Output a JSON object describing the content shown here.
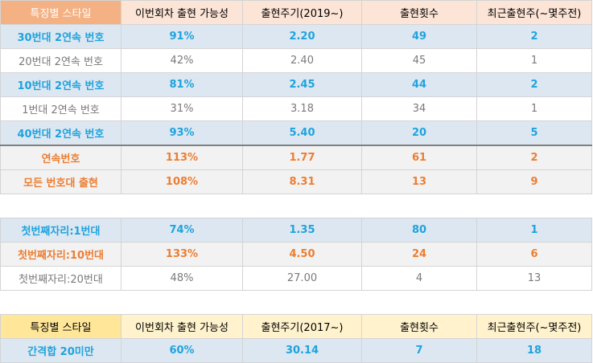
{
  "header": {
    "style": "특징별 스타일",
    "possibility": "이번회차 출현 가능성",
    "cycle": "출현주기(2019~)",
    "count": "출현횟수",
    "recent": "최근출현주(~몇주전)"
  },
  "rows": [
    {
      "style": "30번대 2연속 번호",
      "possibility": "91%",
      "cycle": "2.20",
      "count": "49",
      "recent": "2"
    },
    {
      "style": "20번대 2연속 번호",
      "possibility": "42%",
      "cycle": "2.40",
      "count": "45",
      "recent": "1"
    },
    {
      "style": "10번대 2연속 번호",
      "possibility": "81%",
      "cycle": "2.45",
      "count": "44",
      "recent": "2"
    },
    {
      "style": "1번대 2연속 번호",
      "possibility": "31%",
      "cycle": "3.18",
      "count": "34",
      "recent": "1"
    },
    {
      "style": "40번대 2연속 번호",
      "possibility": "93%",
      "cycle": "5.40",
      "count": "20",
      "recent": "5"
    },
    {
      "style": "연속번호",
      "possibility": "113%",
      "cycle": "1.77",
      "count": "61",
      "recent": "2"
    },
    {
      "style": "모든 번호대 출현",
      "possibility": "108%",
      "cycle": "8.31",
      "count": "13",
      "recent": "9"
    }
  ],
  "rows2": [
    {
      "style": "첫번째자리:1번대",
      "possibility": "74%",
      "cycle": "1.35",
      "count": "80",
      "recent": "1"
    },
    {
      "style": "첫번째자리:10번대",
      "possibility": "133%",
      "cycle": "4.50",
      "count": "24",
      "recent": "6"
    },
    {
      "style": "첫번째자리:20번대",
      "possibility": "48%",
      "cycle": "27.00",
      "count": "4",
      "recent": "13"
    }
  ],
  "header2": {
    "style": "특징별 스타일",
    "possibility": "이번회차 출현 가능성",
    "cycle": "출현주기(2017~)",
    "count": "출현횟수",
    "recent": "최근출현주(~몇주전)"
  },
  "rows3": [
    {
      "style": "간격합 20미만",
      "possibility": "60%",
      "cycle": "30.14",
      "count": "7",
      "recent": "18"
    }
  ],
  "colors": {
    "blue_text": "#1fa3dd",
    "orange_text": "#ed7d31",
    "gray_text": "#7a7a7a",
    "header_accent": "#f4b183",
    "header2_accent": "#ffe699"
  }
}
